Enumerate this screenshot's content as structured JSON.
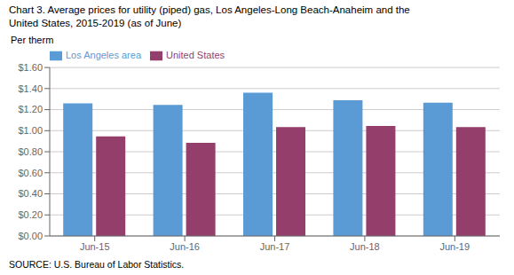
{
  "chart_data": {
    "type": "bar",
    "title": "Chart 3. Average prices for utility (piped) gas, Los Angeles-Long Beach-Anaheim and the",
    "subtitle": "United States, 2015-2019  (as of June)",
    "y_label": "Per therm",
    "categories": [
      "Jun-15",
      "Jun-16",
      "Jun-17",
      "Jun-18",
      "Jun-19"
    ],
    "series": [
      {
        "name": "Los Angeles area",
        "color": "#5B9BD5",
        "values": [
          1.26,
          1.245,
          1.36,
          1.29,
          1.265
        ]
      },
      {
        "name": "United States",
        "color": "#943F6B",
        "values": [
          0.945,
          0.885,
          1.035,
          1.045,
          1.035
        ]
      }
    ],
    "ylim": [
      0.0,
      1.6
    ],
    "yticks": [
      {
        "value": 0.0,
        "label": "$0.00"
      },
      {
        "value": 0.2,
        "label": "$0.20"
      },
      {
        "value": 0.4,
        "label": "$0.40"
      },
      {
        "value": 0.6,
        "label": "$0.60"
      },
      {
        "value": 0.8,
        "label": "$0.80"
      },
      {
        "value": 1.0,
        "label": "$1.00"
      },
      {
        "value": 1.2,
        "label": "$1.20"
      },
      {
        "value": 1.4,
        "label": "$1.40"
      },
      {
        "value": 1.6,
        "label": "$1.60"
      }
    ],
    "grid": true,
    "legend": "upper left",
    "annotations": [
      "SOURCE: U.S. Bureau of Labor Statistics."
    ]
  }
}
